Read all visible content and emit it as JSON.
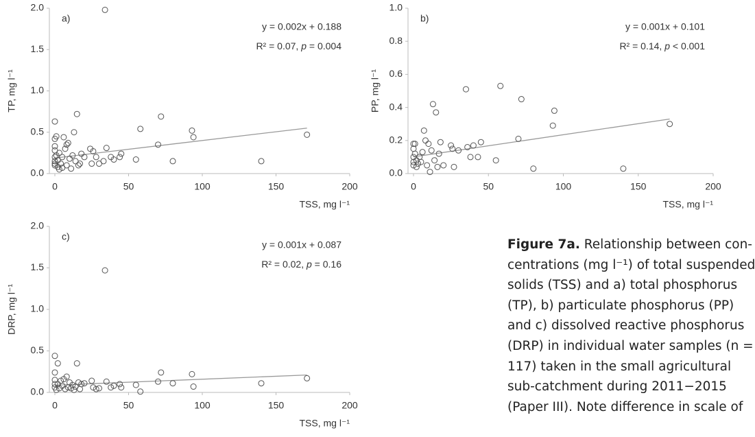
{
  "chart_data": [
    {
      "type": "scatter",
      "panel_label": "a)",
      "x_label": "TSS, mg l⁻¹",
      "y_label": "TP, mg l⁻¹",
      "equation": "y = 0.002x + 0.188",
      "stats": [
        "R² = 0.07, ",
        "p",
        " = 0.004"
      ],
      "x": [
        0,
        0,
        0,
        0,
        0,
        0,
        0,
        0,
        1,
        1,
        2,
        2,
        3,
        3,
        4,
        5,
        5,
        6,
        7,
        8,
        8,
        9,
        10,
        11,
        12,
        13,
        14,
        15,
        16,
        17,
        18,
        20,
        24,
        25,
        26,
        28,
        30,
        33,
        34,
        35,
        38,
        40,
        44,
        45,
        55,
        58,
        70,
        72,
        80,
        93,
        94,
        140,
        171
      ],
      "y": [
        0.63,
        0.42,
        0.33,
        0.28,
        0.2,
        0.15,
        0.12,
        0.1,
        0.45,
        0.22,
        0.08,
        0.16,
        0.05,
        0.25,
        0.12,
        0.2,
        0.07,
        0.44,
        0.3,
        0.35,
        0.1,
        0.37,
        0.18,
        0.06,
        0.22,
        0.5,
        0.15,
        0.72,
        0.1,
        0.12,
        0.24,
        0.2,
        0.3,
        0.12,
        0.27,
        0.2,
        0.12,
        0.15,
        1.98,
        0.31,
        0.2,
        0.17,
        0.2,
        0.24,
        0.17,
        0.54,
        0.35,
        0.69,
        0.15,
        0.52,
        0.44,
        0.15,
        0.47
      ],
      "trend": {
        "x": [
          0,
          171
        ],
        "y": [
          0.188,
          0.55
        ]
      },
      "xlim": [
        0,
        200
      ],
      "xticks": [
        0,
        50,
        100,
        150,
        200
      ],
      "ylim": [
        0,
        2
      ],
      "yticks": [
        {
          "value": 0,
          "label": "0.0"
        },
        {
          "value": 0.5,
          "label": "0.5"
        },
        {
          "value": 1,
          "label": "1.0"
        },
        {
          "value": 1.5,
          "label": "1.5"
        },
        {
          "value": 2,
          "label": "2.0"
        }
      ],
      "marker_color": "#555555",
      "trend_color": "#999999"
    },
    {
      "type": "scatter",
      "panel_label": "b)",
      "x_label": "TSS, mg l⁻¹",
      "y_label": "PP, mg l⁻¹",
      "equation": "y = 0.001x + 0.101",
      "stats": [
        "R² = 0.14, ",
        "p",
        " < 0.001"
      ],
      "x": [
        0,
        0,
        0,
        0,
        0,
        1,
        1,
        2,
        2,
        3,
        4,
        5,
        6,
        7,
        8,
        9,
        10,
        11,
        12,
        13,
        14,
        15,
        16,
        17,
        18,
        20,
        25,
        26,
        27,
        30,
        35,
        36,
        38,
        40,
        43,
        45,
        55,
        58,
        70,
        72,
        80,
        93,
        94,
        140,
        171
      ],
      "y": [
        0.18,
        0.15,
        0.1,
        0.07,
        0.05,
        0.18,
        0.12,
        0.04,
        0.08,
        0.06,
        0.1,
        0.07,
        0.13,
        0.26,
        0.2,
        0.05,
        0.18,
        0.01,
        0.14,
        0.42,
        0.08,
        0.37,
        0.04,
        0.12,
        0.19,
        0.05,
        0.17,
        0.15,
        0.04,
        0.14,
        0.51,
        0.16,
        0.1,
        0.17,
        0.1,
        0.19,
        0.08,
        0.53,
        0.21,
        0.45,
        0.03,
        0.29,
        0.38,
        0.03,
        0.3
      ],
      "trend": {
        "x": [
          0,
          171
        ],
        "y": [
          0.101,
          0.33
        ]
      },
      "xlim": [
        0,
        200
      ],
      "xticks": [
        0,
        50,
        100,
        150,
        200
      ],
      "ylim": [
        0,
        1
      ],
      "yticks": [
        {
          "value": 0,
          "label": "0.0"
        },
        0.2,
        0.4,
        0.6,
        0.8,
        {
          "value": 1,
          "label": "1.0"
        }
      ],
      "marker_color": "#555555",
      "trend_color": "#999999"
    },
    {
      "type": "scatter",
      "panel_label": "c)",
      "x_label": "TSS, mg l⁻¹",
      "y_label": "DRP, mg l⁻¹",
      "equation": "y = 0.001x + 0.087",
      "stats": [
        "R² = 0.02, ",
        "p",
        " = 0.16"
      ],
      "x": [
        0,
        0,
        0,
        0,
        0,
        1,
        2,
        2,
        3,
        4,
        5,
        6,
        7,
        8,
        9,
        10,
        11,
        12,
        13,
        14,
        15,
        16,
        17,
        18,
        20,
        25,
        26,
        28,
        30,
        34,
        35,
        38,
        40,
        44,
        45,
        55,
        58,
        70,
        72,
        80,
        93,
        94,
        140,
        171
      ],
      "y": [
        0.44,
        0.24,
        0.15,
        0.1,
        0.06,
        0.03,
        0.35,
        0.1,
        0.05,
        0.14,
        0.08,
        0.16,
        0.04,
        0.19,
        0.06,
        0.12,
        0.05,
        0.09,
        0.03,
        0.07,
        0.35,
        0.12,
        0.04,
        0.1,
        0.11,
        0.14,
        0.06,
        0.04,
        0.05,
        1.47,
        0.13,
        0.06,
        0.08,
        0.1,
        0.06,
        0.09,
        0.01,
        0.13,
        0.24,
        0.11,
        0.22,
        0.07,
        0.11,
        0.17
      ],
      "trend": {
        "x": [
          0,
          171
        ],
        "y": [
          0.087,
          0.21
        ]
      },
      "xlim": [
        0,
        200
      ],
      "xticks": [
        0,
        50,
        100,
        150,
        200
      ],
      "ylim": [
        0,
        2
      ],
      "yticks": [
        {
          "value": 0,
          "label": "0.0"
        },
        {
          "value": 0.5,
          "label": "0.5"
        },
        {
          "value": 1,
          "label": "1.0"
        },
        {
          "value": 1.5,
          "label": "1.5"
        },
        {
          "value": 2,
          "label": "2.0"
        }
      ],
      "marker_color": "#555555",
      "trend_color": "#999999"
    }
  ],
  "caption": {
    "label": "Figure 7a.",
    "lines": [
      " Relationship between con-",
      "centrations (mg l⁻¹) of total suspended",
      "solids (TSS) and a) total phosphorus",
      "(TP), b) particulate phosphorus (PP)",
      "and c) dissolved reactive phosphorus",
      "(DRP) in individual water samples (n =",
      "117) taken in the small agricultural",
      "sub-catchment during 2011−2015",
      "(Paper III). Note difference in scale of"
    ]
  }
}
